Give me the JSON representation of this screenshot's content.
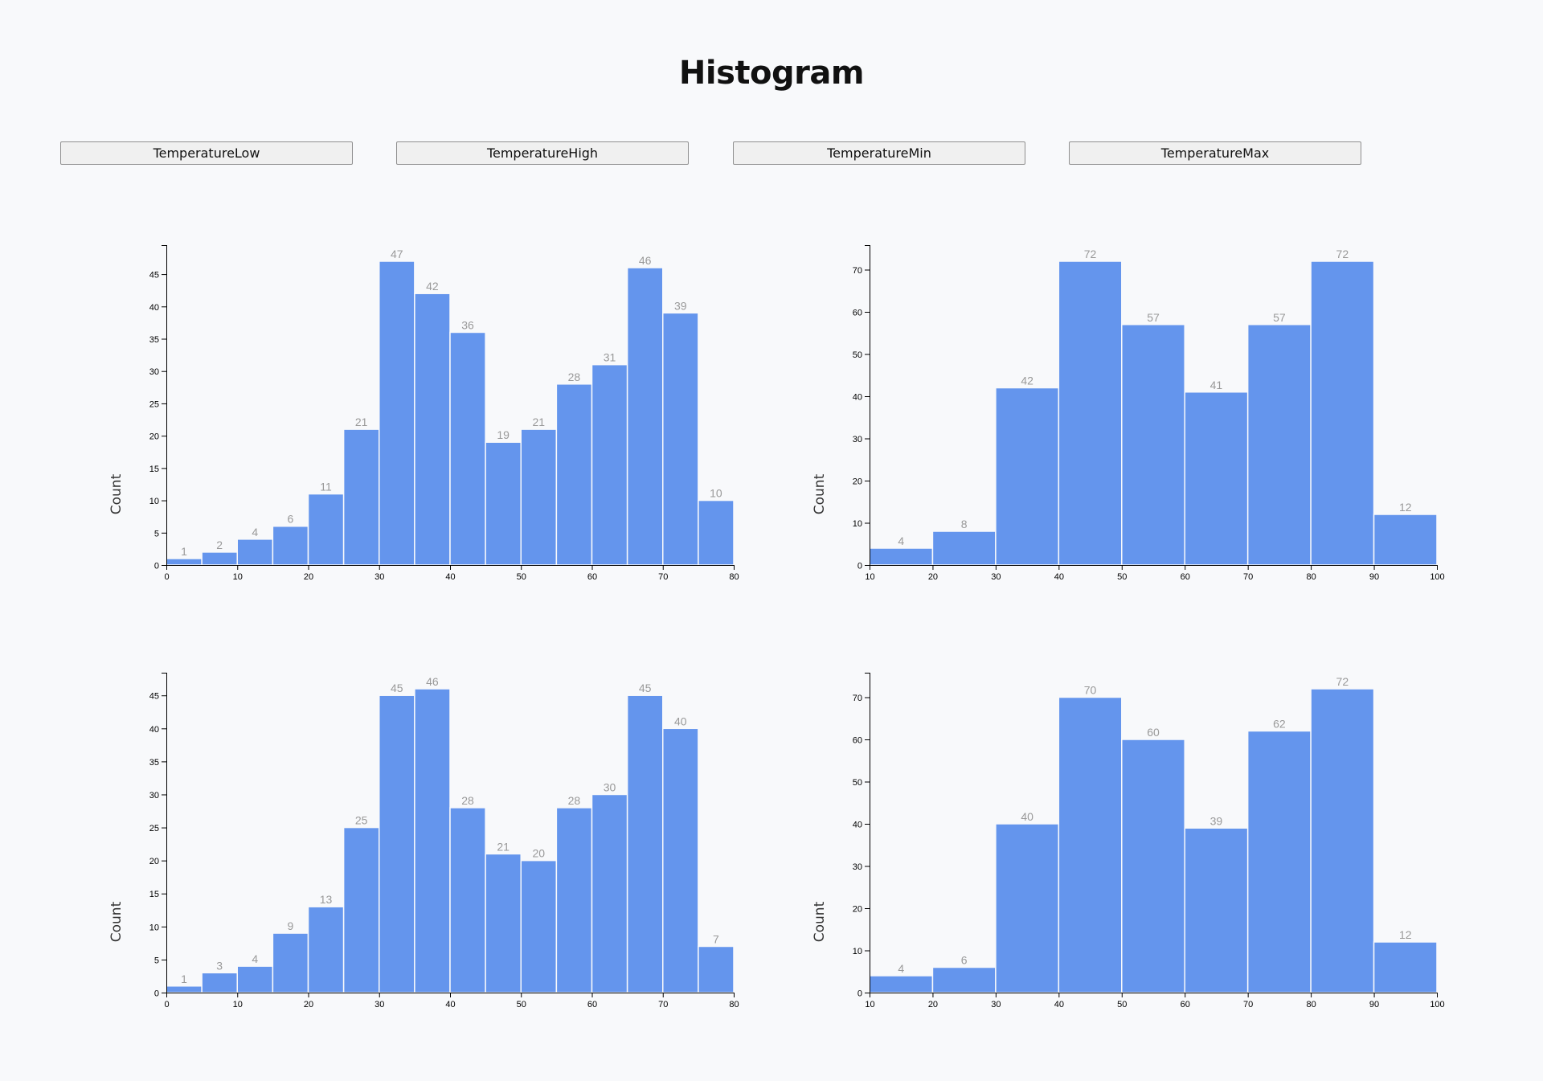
{
  "header": {
    "title": "Histogram"
  },
  "buttons": [
    {
      "label": "TemperatureLow"
    },
    {
      "label": "TemperatureHigh"
    },
    {
      "label": "TemperatureMin"
    },
    {
      "label": "TemperatureMax"
    }
  ],
  "chart_data": [
    {
      "type": "bar",
      "bin_edges": [
        0,
        5,
        10,
        15,
        20,
        25,
        30,
        35,
        40,
        45,
        50,
        55,
        60,
        65,
        70,
        75,
        80
      ],
      "values": [
        1,
        2,
        4,
        6,
        11,
        21,
        47,
        42,
        36,
        19,
        21,
        28,
        31,
        46,
        39,
        10
      ],
      "xticks": [
        0,
        10,
        20,
        30,
        40,
        50,
        60,
        70,
        80
      ],
      "yticks": [
        0,
        5,
        10,
        15,
        20,
        25,
        30,
        35,
        40,
        45
      ],
      "xlim": [
        0,
        80
      ],
      "ylim": [
        0,
        47
      ],
      "xlabel": "",
      "ylabel": "Count",
      "grid": false,
      "color": "#6495ed"
    },
    {
      "type": "bar",
      "bin_edges": [
        10,
        20,
        30,
        40,
        50,
        60,
        70,
        80,
        90,
        100
      ],
      "values": [
        4,
        8,
        42,
        72,
        57,
        41,
        57,
        72,
        12
      ],
      "xticks": [
        10,
        20,
        30,
        40,
        50,
        60,
        70,
        80,
        90,
        100
      ],
      "yticks": [
        0,
        10,
        20,
        30,
        40,
        50,
        60,
        70
      ],
      "xlim": [
        10,
        100
      ],
      "ylim": [
        0,
        72
      ],
      "xlabel": "",
      "ylabel": "Count",
      "grid": false,
      "color": "#6495ed"
    },
    {
      "type": "bar",
      "bin_edges": [
        0,
        5,
        10,
        15,
        20,
        25,
        30,
        35,
        40,
        45,
        50,
        55,
        60,
        65,
        70,
        75,
        80
      ],
      "values": [
        1,
        3,
        4,
        9,
        13,
        25,
        45,
        46,
        28,
        21,
        20,
        28,
        30,
        45,
        40,
        7
      ],
      "xticks": [
        0,
        10,
        20,
        30,
        40,
        50,
        60,
        70,
        80
      ],
      "yticks": [
        0,
        5,
        10,
        15,
        20,
        25,
        30,
        35,
        40,
        45
      ],
      "xlim": [
        0,
        80
      ],
      "ylim": [
        0,
        46
      ],
      "xlabel": "",
      "ylabel": "Count",
      "grid": false,
      "color": "#6495ed"
    },
    {
      "type": "bar",
      "bin_edges": [
        10,
        20,
        30,
        40,
        50,
        60,
        70,
        80,
        90,
        100
      ],
      "values": [
        4,
        6,
        40,
        70,
        60,
        39,
        62,
        72,
        12
      ],
      "xticks": [
        10,
        20,
        30,
        40,
        50,
        60,
        70,
        80,
        90,
        100
      ],
      "yticks": [
        0,
        10,
        20,
        30,
        40,
        50,
        60,
        70
      ],
      "xlim": [
        10,
        100
      ],
      "ylim": [
        0,
        72
      ],
      "xlabel": "",
      "ylabel": "Count",
      "grid": false,
      "color": "#6495ed"
    }
  ]
}
